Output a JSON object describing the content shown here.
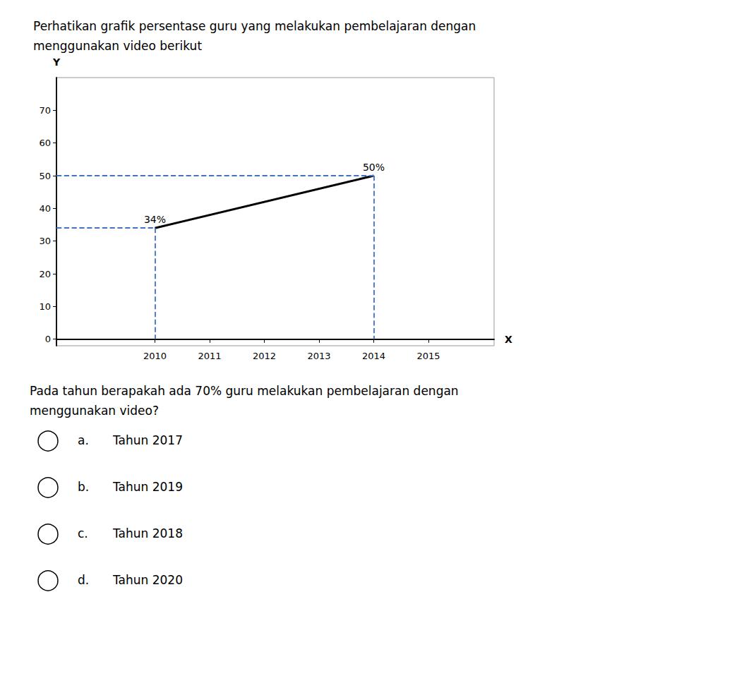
{
  "chart_data": {
    "type": "line",
    "title": "Perhatikan grafik persentase guru yang melakukan pembelajaran dengan\nmenggunakan video berikut",
    "x_label": "X",
    "y_label": "Y",
    "x": [
      2010,
      2014
    ],
    "series": [
      {
        "values": [
          34,
          50
        ],
        "color": "#000000",
        "value_labels": [
          "34%",
          "50%"
        ]
      }
    ],
    "data_labels": true,
    "drop_lines": {
      "color": "#4472C4",
      "line_style": "dashed"
    },
    "xlim": [
      2008.2,
      2016.2
    ],
    "xticks": [
      2010,
      2011,
      2012,
      2013,
      2014,
      2015
    ],
    "ylim": [
      -2,
      80
    ],
    "yticks": [
      0,
      10,
      20,
      30,
      40,
      50,
      60,
      70
    ],
    "grid": false,
    "question": "Pada tahun berapakah ada 70% guru melakukan pembelajaran dengan\nmenggunakan video?",
    "options": [
      {
        "letter": "a.",
        "text": "Tahun 2017"
      },
      {
        "letter": "b.",
        "text": "Tahun 2019"
      },
      {
        "letter": "c.",
        "text": "Tahun 2018"
      },
      {
        "letter": "d.",
        "text": "Tahun 2020"
      }
    ]
  }
}
